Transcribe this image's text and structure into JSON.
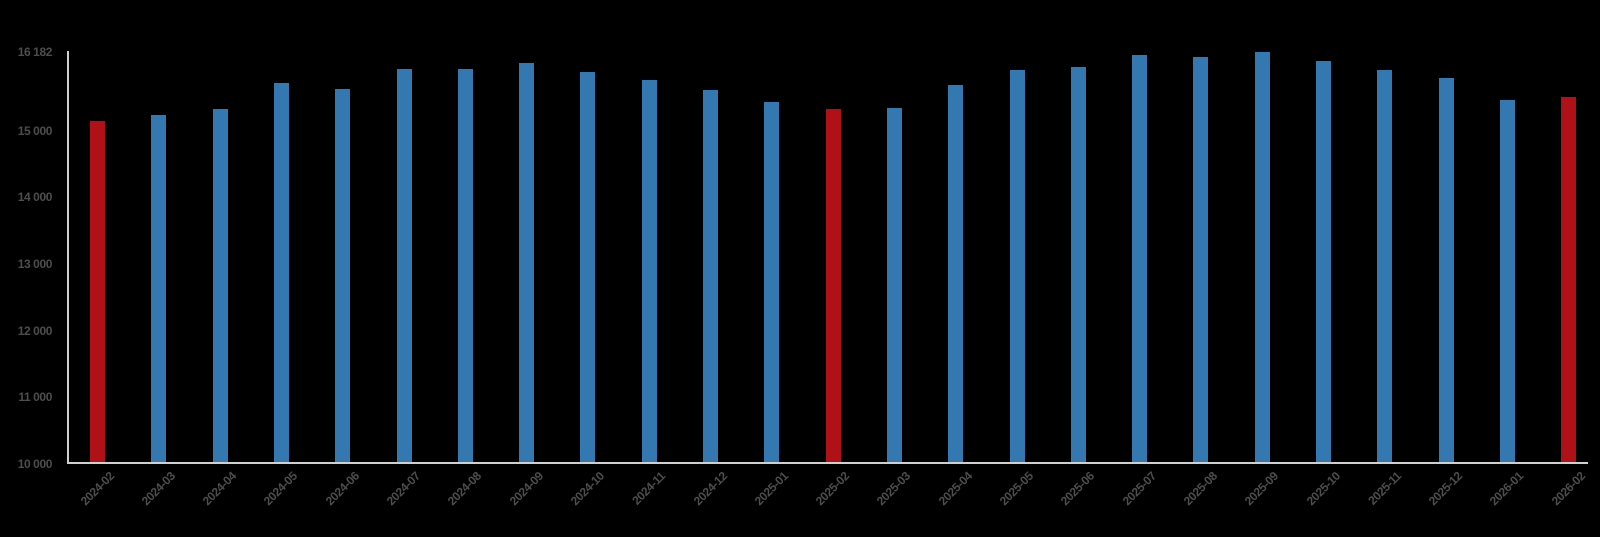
{
  "chart_data": {
    "type": "bar",
    "title": "",
    "xlabel": "",
    "ylabel": "",
    "grid": false,
    "legend": "none",
    "background_color": "#000000",
    "axis_color": "#cfcfcf",
    "label_color": "#4d4d4d",
    "bar_color": "#3478b2",
    "highlight_color": "#b01116",
    "highlight_indices": [
      0,
      12,
      24
    ],
    "ylim": [
      10000,
      16182
    ],
    "categories": [
      "2024-02",
      "2024-03",
      "2024-04",
      "2024-05",
      "2024-06",
      "2024-07",
      "2024-08",
      "2024-09",
      "2024-10",
      "2024-11",
      "2024-12",
      "2025-01",
      "2025-02",
      "2025-03",
      "2025-04",
      "2025-05",
      "2025-06",
      "2025-07",
      "2025-08",
      "2025-09",
      "2025-10",
      "2025-11",
      "2025-12",
      "2026-01",
      "2026-02"
    ],
    "values": [
      15140,
      15230,
      15320,
      15710,
      15630,
      15930,
      15920,
      16010,
      15880,
      15760,
      15610,
      15430,
      15330,
      15340,
      15680,
      15910,
      15950,
      16140,
      16100,
      16182,
      16040,
      15910,
      15790,
      15460,
      15510
    ],
    "yticks": [
      {
        "value": 16182,
        "label": "16 182"
      },
      {
        "value": 15000,
        "label": "15 000"
      },
      {
        "value": 14000,
        "label": "14 000"
      },
      {
        "value": 13000,
        "label": "13 000"
      },
      {
        "value": 12000,
        "label": "12 000"
      },
      {
        "value": 11000,
        "label": "11 000"
      },
      {
        "value": 10000,
        "label": "10 000"
      }
    ]
  }
}
